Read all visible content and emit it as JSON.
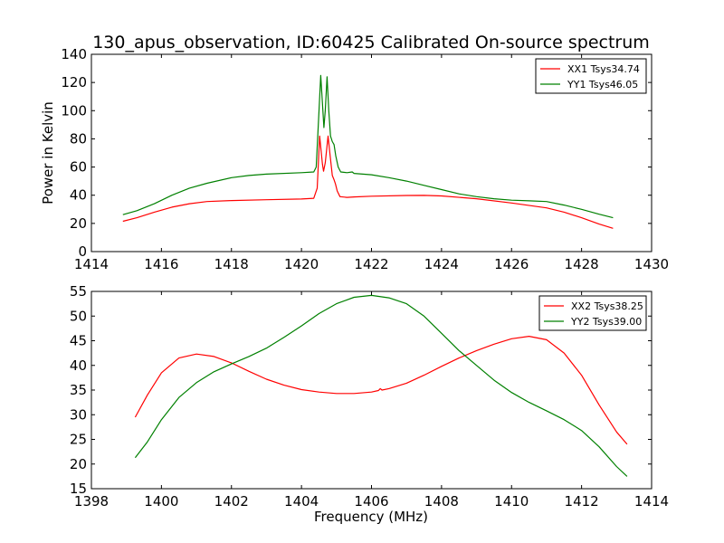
{
  "chart_data": [
    {
      "type": "line",
      "title": "130_apus_observation, ID:60425 Calibrated On-source spectrum",
      "xlabel": "",
      "ylabel": "Power in Kelvin",
      "xlim": [
        1414,
        1430
      ],
      "ylim": [
        0,
        140
      ],
      "xticks": [
        1414,
        1416,
        1418,
        1420,
        1422,
        1424,
        1426,
        1428,
        1430
      ],
      "yticks": [
        0,
        20,
        40,
        60,
        80,
        100,
        120,
        140
      ],
      "legend_position": "top-right",
      "series": [
        {
          "name": "XX1 Tsys34.74",
          "color": "#ff0000",
          "points": [
            [
              1414.9,
              21.5
            ],
            [
              1415.3,
              24
            ],
            [
              1415.8,
              28
            ],
            [
              1416.3,
              31.5
            ],
            [
              1416.8,
              34
            ],
            [
              1417.3,
              35.5
            ],
            [
              1418,
              36.2
            ],
            [
              1419,
              36.8
            ],
            [
              1420,
              37.3
            ],
            [
              1420.35,
              37.8
            ],
            [
              1420.45,
              45
            ],
            [
              1420.52,
              82
            ],
            [
              1420.6,
              62
            ],
            [
              1420.63,
              57
            ],
            [
              1420.68,
              63
            ],
            [
              1420.76,
              82
            ],
            [
              1420.82,
              68
            ],
            [
              1420.88,
              54
            ],
            [
              1420.93,
              51
            ],
            [
              1420.97,
              48
            ],
            [
              1421.02,
              43
            ],
            [
              1421.1,
              39
            ],
            [
              1421.3,
              38.5
            ],
            [
              1421.5,
              38.8
            ],
            [
              1422,
              39.3
            ],
            [
              1423,
              39.8
            ],
            [
              1423.5,
              39.9
            ],
            [
              1424,
              39.5
            ],
            [
              1425,
              37.5
            ],
            [
              1426,
              34.5
            ],
            [
              1427,
              31
            ],
            [
              1427.5,
              28
            ],
            [
              1428,
              24
            ],
            [
              1428.5,
              19.5
            ],
            [
              1428.9,
              16.5
            ]
          ]
        },
        {
          "name": "YY1 Tsys46.05",
          "color": "#008000",
          "points": [
            [
              1414.9,
              26.2
            ],
            [
              1415.3,
              29
            ],
            [
              1415.8,
              34
            ],
            [
              1416.3,
              40
            ],
            [
              1416.8,
              45
            ],
            [
              1417.3,
              48.5
            ],
            [
              1418,
              52.5
            ],
            [
              1418.5,
              54
            ],
            [
              1419,
              55
            ],
            [
              1420,
              56
            ],
            [
              1420.35,
              56.5
            ],
            [
              1420.42,
              60
            ],
            [
              1420.5,
              100
            ],
            [
              1420.55,
              125
            ],
            [
              1420.6,
              105
            ],
            [
              1420.64,
              88
            ],
            [
              1420.68,
              100
            ],
            [
              1420.73,
              124
            ],
            [
              1420.78,
              100
            ],
            [
              1420.83,
              82
            ],
            [
              1420.88,
              78
            ],
            [
              1420.93,
              76
            ],
            [
              1420.98,
              68
            ],
            [
              1421.05,
              60
            ],
            [
              1421.12,
              56.5
            ],
            [
              1421.3,
              56
            ],
            [
              1421.45,
              56.5
            ],
            [
              1421.5,
              55.5
            ],
            [
              1422,
              54.5
            ],
            [
              1422.5,
              52.5
            ],
            [
              1423,
              50
            ],
            [
              1423.5,
              47
            ],
            [
              1424,
              44
            ],
            [
              1424.5,
              41
            ],
            [
              1425,
              39
            ],
            [
              1425.5,
              37.5
            ],
            [
              1426,
              36.5
            ],
            [
              1426.5,
              36
            ],
            [
              1427,
              35.5
            ],
            [
              1427.5,
              33
            ],
            [
              1428,
              30
            ],
            [
              1428.5,
              26.5
            ],
            [
              1428.9,
              24
            ]
          ]
        }
      ]
    },
    {
      "type": "line",
      "title": "",
      "xlabel": "Frequency (MHz)",
      "ylabel": "",
      "xlim": [
        1398,
        1414
      ],
      "ylim": [
        15,
        55
      ],
      "xticks": [
        1398,
        1400,
        1402,
        1404,
        1406,
        1408,
        1410,
        1412,
        1414
      ],
      "yticks": [
        15,
        20,
        25,
        30,
        35,
        40,
        45,
        50,
        55
      ],
      "legend_position": "top-right",
      "series": [
        {
          "name": "XX2 Tsys38.25",
          "color": "#ff0000",
          "points": [
            [
              1399.25,
              29.5
            ],
            [
              1399.6,
              34
            ],
            [
              1400,
              38.5
            ],
            [
              1400.5,
              41.5
            ],
            [
              1401,
              42.3
            ],
            [
              1401.5,
              41.8
            ],
            [
              1402,
              40.5
            ],
            [
              1402.5,
              38.8
            ],
            [
              1403,
              37.2
            ],
            [
              1403.5,
              36
            ],
            [
              1404,
              35.1
            ],
            [
              1404.5,
              34.6
            ],
            [
              1405,
              34.3
            ],
            [
              1405.5,
              34.3
            ],
            [
              1406,
              34.6
            ],
            [
              1406.2,
              34.9
            ],
            [
              1406.25,
              35.3
            ],
            [
              1406.3,
              35
            ],
            [
              1406.5,
              35.3
            ],
            [
              1407,
              36.4
            ],
            [
              1407.5,
              38
            ],
            [
              1408,
              39.8
            ],
            [
              1408.5,
              41.5
            ],
            [
              1409,
              43
            ],
            [
              1409.5,
              44.3
            ],
            [
              1410,
              45.4
            ],
            [
              1410.5,
              45.9
            ],
            [
              1411,
              45.2
            ],
            [
              1411.5,
              42.5
            ],
            [
              1412,
              38
            ],
            [
              1412.5,
              32
            ],
            [
              1413,
              26.5
            ],
            [
              1413.3,
              24
            ]
          ]
        },
        {
          "name": "YY2 Tsys39.00",
          "color": "#008000",
          "points": [
            [
              1399.25,
              21.3
            ],
            [
              1399.6,
              24.5
            ],
            [
              1400,
              29
            ],
            [
              1400.5,
              33.5
            ],
            [
              1401,
              36.5
            ],
            [
              1401.5,
              38.7
            ],
            [
              1402,
              40.3
            ],
            [
              1402.5,
              41.8
            ],
            [
              1403,
              43.5
            ],
            [
              1403.5,
              45.7
            ],
            [
              1404,
              48
            ],
            [
              1404.5,
              50.5
            ],
            [
              1405,
              52.5
            ],
            [
              1405.5,
              53.8
            ],
            [
              1406,
              54.2
            ],
            [
              1406.5,
              53.7
            ],
            [
              1407,
              52.5
            ],
            [
              1407.5,
              50
            ],
            [
              1408,
              46.5
            ],
            [
              1408.5,
              43
            ],
            [
              1409,
              40
            ],
            [
              1409.5,
              37
            ],
            [
              1410,
              34.5
            ],
            [
              1410.5,
              32.5
            ],
            [
              1411,
              30.8
            ],
            [
              1411.5,
              29
            ],
            [
              1412,
              26.8
            ],
            [
              1412.5,
              23.5
            ],
            [
              1413,
              19.5
            ],
            [
              1413.3,
              17.5
            ]
          ]
        }
      ]
    }
  ]
}
